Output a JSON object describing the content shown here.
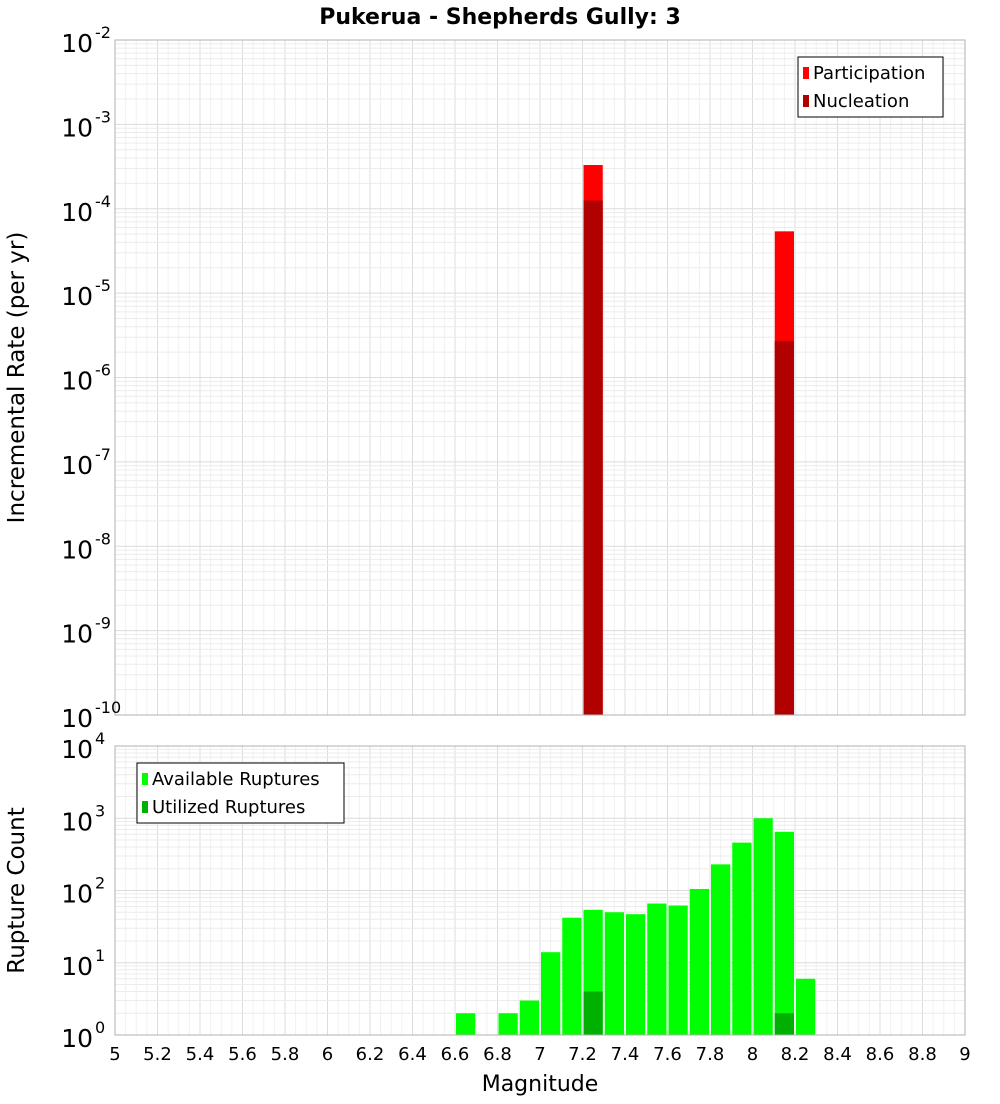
{
  "chart_data": [
    {
      "type": "bar",
      "title": "Pukerua - Shepherds Gully: 3",
      "xlabel": "",
      "ylabel": "Incremental Rate (per yr)",
      "yscale": "log",
      "ylim_exp": [
        -10,
        -2
      ],
      "xlim": [
        5,
        9
      ],
      "legend_position": "top-right",
      "bar_width": 0.1,
      "series": [
        {
          "name": "Participation",
          "color": "#ff0000",
          "points": [
            {
              "x": 7.25,
              "y": 0.00033
            },
            {
              "x": 8.15,
              "y": 5.4e-05
            }
          ]
        },
        {
          "name": "Nucleation",
          "color": "#b00000",
          "points": [
            {
              "x": 7.25,
              "y": 0.000125
            },
            {
              "x": 8.15,
              "y": 2.7e-06
            }
          ]
        }
      ]
    },
    {
      "type": "bar",
      "title": "",
      "xlabel": "Magnitude",
      "ylabel": "Rupture Count",
      "yscale": "log",
      "ylim_exp": [
        0,
        4
      ],
      "xlim": [
        5,
        9
      ],
      "legend_position": "top-left",
      "bar_width": 0.1,
      "x_ticks": [
        "5",
        "5.2",
        "5.4",
        "5.6",
        "5.8",
        "6",
        "6.2",
        "6.4",
        "6.6",
        "6.8",
        "7",
        "7.2",
        "7.4",
        "7.6",
        "7.8",
        "8",
        "8.2",
        "8.4",
        "8.6",
        "8.8",
        "9"
      ],
      "series": [
        {
          "name": "Available Ruptures",
          "color": "#00ff00",
          "points": [
            {
              "x": 6.65,
              "y": 2
            },
            {
              "x": 6.85,
              "y": 2
            },
            {
              "x": 6.95,
              "y": 3
            },
            {
              "x": 7.05,
              "y": 14
            },
            {
              "x": 7.15,
              "y": 42
            },
            {
              "x": 7.25,
              "y": 54
            },
            {
              "x": 7.35,
              "y": 50
            },
            {
              "x": 7.45,
              "y": 47
            },
            {
              "x": 7.55,
              "y": 66
            },
            {
              "x": 7.65,
              "y": 62
            },
            {
              "x": 7.75,
              "y": 105
            },
            {
              "x": 7.85,
              "y": 230
            },
            {
              "x": 7.95,
              "y": 460
            },
            {
              "x": 8.05,
              "y": 1000
            },
            {
              "x": 8.15,
              "y": 650
            },
            {
              "x": 8.25,
              "y": 6
            }
          ]
        },
        {
          "name": "Utilized Ruptures",
          "color": "#00b000",
          "points": [
            {
              "x": 7.25,
              "y": 4
            },
            {
              "x": 8.15,
              "y": 2
            }
          ]
        }
      ]
    }
  ]
}
